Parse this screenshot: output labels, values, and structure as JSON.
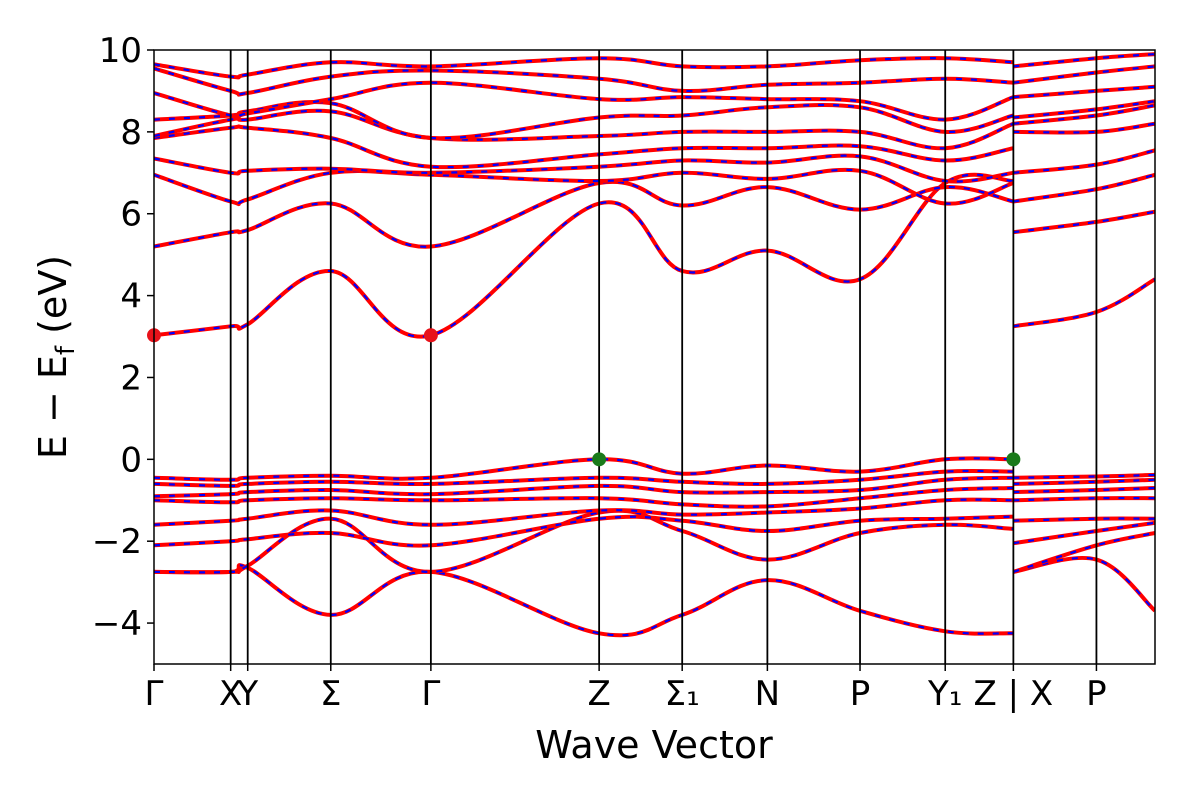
{
  "chart_data": {
    "type": "line",
    "xlabel": "Wave Vector",
    "ylabel": "E − E_f (eV)",
    "ylim": [
      -5,
      10
    ],
    "yticks": [
      -4,
      -2,
      0,
      2,
      4,
      6,
      8,
      10
    ],
    "ytick_labels": [
      "−4",
      "−2",
      "0",
      "2",
      "4",
      "6",
      "8",
      "10"
    ],
    "xlim": [
      0,
      9.4
    ],
    "kpoints": [
      {
        "label": "Γ",
        "x": 0.0
      },
      {
        "label": "X",
        "x": 0.72
      },
      {
        "label": "Y",
        "x": 0.88
      },
      {
        "label": "Σ",
        "x": 1.66
      },
      {
        "label": "Γ",
        "x": 2.6
      },
      {
        "label": "Z",
        "x": 4.18
      },
      {
        "label": "Σ₁",
        "x": 4.96
      },
      {
        "label": "N",
        "x": 5.76
      },
      {
        "label": "P",
        "x": 6.63
      },
      {
        "label": "Y₁",
        "x": 7.43
      },
      {
        "label": "Z | X",
        "x": 8.07
      },
      {
        "label": "P",
        "x": 8.85
      }
    ],
    "grid": false,
    "legend": "none",
    "series_colors": {
      "bands_primary": "#ff0000",
      "bands_dashed": "#0000ff"
    },
    "markers": [
      {
        "kind": "CBM",
        "x": 0.0,
        "y": 3.03,
        "color": "#e8121a"
      },
      {
        "kind": "CBM",
        "x": 2.6,
        "y": 3.03,
        "color": "#e8121a"
      },
      {
        "kind": "VBM",
        "x": 4.18,
        "y": 0.0,
        "color": "#1a7a1a"
      },
      {
        "kind": "VBM",
        "x": 8.07,
        "y": 0.0,
        "color": "#1a7a1a"
      }
    ],
    "bands": [
      {
        "x": [
          0,
          0.72,
          0.88,
          1.66,
          2.6,
          4.18,
          4.96,
          5.76,
          6.63,
          7.43,
          8.07
        ],
        "y": [
          -2.75,
          -2.75,
          -2.65,
          -3.8,
          -2.75,
          -4.25,
          -3.8,
          -2.95,
          -3.7,
          -4.2,
          -4.25
        ]
      },
      {
        "x": [
          8.07,
          8.85,
          9.4
        ],
        "y": [
          -2.75,
          -2.45,
          -3.7
        ]
      },
      {
        "x": [
          0,
          0.72,
          0.88,
          1.66,
          2.6,
          4.18,
          4.96,
          5.76,
          6.63,
          7.43,
          8.07
        ],
        "y": [
          -2.75,
          -2.75,
          -2.6,
          -1.45,
          -2.75,
          -1.3,
          -1.75,
          -2.45,
          -1.8,
          -1.6,
          -1.7
        ]
      },
      {
        "x": [
          8.07,
          8.85,
          9.4
        ],
        "y": [
          -2.75,
          -2.1,
          -1.8
        ]
      },
      {
        "x": [
          0,
          0.72,
          0.88,
          1.66,
          2.6,
          4.18,
          4.96,
          5.76,
          6.63,
          7.43,
          8.07
        ],
        "y": [
          -2.1,
          -2.0,
          -1.95,
          -1.8,
          -2.1,
          -1.45,
          -1.5,
          -1.75,
          -1.5,
          -1.45,
          -1.4
        ]
      },
      {
        "x": [
          8.07,
          8.85,
          9.4
        ],
        "y": [
          -2.05,
          -1.75,
          -1.55
        ]
      },
      {
        "x": [
          0,
          0.72,
          0.88,
          1.66,
          2.6,
          4.18,
          4.96,
          5.76,
          6.63,
          7.43,
          8.07
        ],
        "y": [
          -1.6,
          -1.5,
          -1.45,
          -1.25,
          -1.6,
          -1.25,
          -1.35,
          -1.3,
          -1.2,
          -1.0,
          -1.0
        ]
      },
      {
        "x": [
          8.07,
          8.85,
          9.4
        ],
        "y": [
          -1.5,
          -1.45,
          -1.45
        ]
      },
      {
        "x": [
          0,
          0.72,
          0.88,
          1.66,
          2.6,
          4.18,
          4.96,
          5.76,
          6.63,
          7.43,
          8.07
        ],
        "y": [
          -1.0,
          -1.05,
          -1.0,
          -0.95,
          -1.0,
          -0.95,
          -1.1,
          -1.15,
          -0.95,
          -0.75,
          -0.7
        ]
      },
      {
        "x": [
          8.07,
          8.85,
          9.4
        ],
        "y": [
          -1.0,
          -0.95,
          -0.95
        ]
      },
      {
        "x": [
          0,
          0.72,
          0.88,
          1.66,
          2.6,
          4.18,
          4.96,
          5.76,
          6.63,
          7.43,
          8.07
        ],
        "y": [
          -0.9,
          -0.85,
          -0.8,
          -0.75,
          -0.85,
          -0.65,
          -0.8,
          -0.8,
          -0.75,
          -0.5,
          -0.45
        ]
      },
      {
        "x": [
          8.07,
          8.85,
          9.4
        ],
        "y": [
          -0.8,
          -0.75,
          -0.7
        ]
      },
      {
        "x": [
          0,
          0.72,
          0.88,
          1.66,
          2.6,
          4.18,
          4.96,
          5.76,
          6.63,
          7.43,
          8.07
        ],
        "y": [
          -0.6,
          -0.65,
          -0.6,
          -0.55,
          -0.6,
          -0.45,
          -0.55,
          -0.6,
          -0.5,
          -0.3,
          -0.3
        ]
      },
      {
        "x": [
          8.07,
          8.85,
          9.4
        ],
        "y": [
          -0.6,
          -0.55,
          -0.5
        ]
      },
      {
        "x": [
          0,
          0.72,
          0.88,
          1.66,
          2.6,
          4.18,
          4.96,
          5.76,
          6.63,
          7.43,
          8.07
        ],
        "y": [
          -0.45,
          -0.5,
          -0.45,
          -0.4,
          -0.45,
          0.0,
          -0.35,
          -0.15,
          -0.3,
          0.0,
          0.0
        ]
      },
      {
        "x": [
          8.07,
          8.85,
          9.4
        ],
        "y": [
          -0.45,
          -0.42,
          -0.38
        ]
      },
      {
        "x": [
          0,
          0.72,
          0.88,
          1.66,
          2.6,
          4.18,
          4.96,
          5.76,
          6.63,
          7.43,
          8.07
        ],
        "y": [
          3.03,
          3.25,
          3.3,
          4.6,
          3.03,
          6.25,
          4.6,
          5.1,
          4.4,
          6.75,
          6.8
        ]
      },
      {
        "x": [
          8.07,
          8.85,
          9.4
        ],
        "y": [
          3.25,
          3.6,
          4.4
        ]
      },
      {
        "x": [
          0,
          0.72,
          0.88,
          1.66,
          2.6,
          4.18,
          4.96,
          5.76,
          6.63,
          7.43,
          8.07
        ],
        "y": [
          5.2,
          5.55,
          5.6,
          6.25,
          5.2,
          6.75,
          6.2,
          6.65,
          6.1,
          6.65,
          6.3
        ]
      },
      {
        "x": [
          8.07,
          8.85,
          9.4
        ],
        "y": [
          5.55,
          5.8,
          6.05
        ]
      },
      {
        "x": [
          0,
          0.72,
          0.88,
          1.66,
          2.6,
          4.18,
          4.96,
          5.76,
          6.63,
          7.43,
          8.07
        ],
        "y": [
          6.95,
          6.3,
          6.35,
          7.0,
          6.95,
          6.8,
          7.0,
          6.85,
          7.05,
          6.25,
          6.75
        ]
      },
      {
        "x": [
          8.07,
          8.85,
          9.4
        ],
        "y": [
          6.3,
          6.6,
          6.95
        ]
      },
      {
        "x": [
          0,
          0.72,
          0.88,
          1.66,
          2.6,
          4.18,
          4.96,
          5.76,
          6.63,
          7.43,
          8.07
        ],
        "y": [
          7.35,
          7.0,
          7.05,
          7.1,
          7.0,
          7.15,
          7.3,
          7.25,
          7.4,
          6.8,
          7.0
        ]
      },
      {
        "x": [
          8.07,
          8.85,
          9.4
        ],
        "y": [
          7.0,
          7.2,
          7.55
        ]
      },
      {
        "x": [
          0,
          0.72,
          0.88,
          1.66,
          2.6,
          4.18,
          4.96,
          5.76,
          6.63,
          7.43,
          8.07
        ],
        "y": [
          7.85,
          8.1,
          8.1,
          7.85,
          7.15,
          7.45,
          7.6,
          7.6,
          7.65,
          7.3,
          7.6
        ]
      },
      {
        "x": [
          8.07,
          8.85,
          9.4
        ],
        "y": [
          8.0,
          8.0,
          8.2
        ]
      },
      {
        "x": [
          0,
          0.72,
          0.88,
          1.66,
          2.6,
          4.18,
          4.96,
          5.76,
          6.63,
          7.43,
          8.07
        ],
        "y": [
          7.9,
          8.3,
          8.3,
          8.5,
          7.85,
          7.9,
          8.0,
          8.0,
          8.0,
          7.6,
          8.2
        ]
      },
      {
        "x": [
          8.07,
          8.85,
          9.4
        ],
        "y": [
          8.2,
          8.4,
          8.65
        ]
      },
      {
        "x": [
          0,
          0.72,
          0.88,
          1.66,
          2.6,
          4.18,
          4.96,
          5.76,
          6.63,
          7.43,
          8.07
        ],
        "y": [
          8.3,
          8.4,
          8.5,
          8.7,
          7.85,
          8.35,
          8.4,
          8.6,
          8.6,
          8.0,
          8.4
        ]
      },
      {
        "x": [
          8.07,
          8.85,
          9.4
        ],
        "y": [
          8.35,
          8.55,
          8.75
        ]
      },
      {
        "x": [
          0,
          0.72,
          0.88,
          1.66,
          2.6,
          4.18,
          4.96,
          5.76,
          6.63,
          7.43,
          8.07
        ],
        "y": [
          8.95,
          8.4,
          8.45,
          8.8,
          9.2,
          8.8,
          8.85,
          8.8,
          8.75,
          8.3,
          8.85
        ]
      },
      {
        "x": [
          8.07,
          8.85,
          9.4
        ],
        "y": [
          8.85,
          9.0,
          9.1
        ]
      },
      {
        "x": [
          0,
          0.72,
          0.88,
          1.66,
          2.6,
          4.18,
          4.96,
          5.76,
          6.63,
          7.43,
          8.07
        ],
        "y": [
          9.55,
          9.0,
          8.95,
          9.35,
          9.5,
          9.3,
          9.0,
          9.15,
          9.2,
          9.3,
          9.2
        ]
      },
      {
        "x": [
          8.07,
          8.85,
          9.4
        ],
        "y": [
          9.2,
          9.45,
          9.6
        ]
      },
      {
        "x": [
          0,
          0.72,
          0.88,
          1.66,
          2.6,
          4.18,
          4.96,
          5.76,
          6.63,
          7.43,
          8.07
        ],
        "y": [
          9.65,
          9.35,
          9.4,
          9.7,
          9.6,
          9.8,
          9.6,
          9.6,
          9.75,
          9.8,
          9.7
        ]
      },
      {
        "x": [
          8.07,
          8.85,
          9.4
        ],
        "y": [
          9.6,
          9.8,
          9.9
        ]
      }
    ]
  }
}
